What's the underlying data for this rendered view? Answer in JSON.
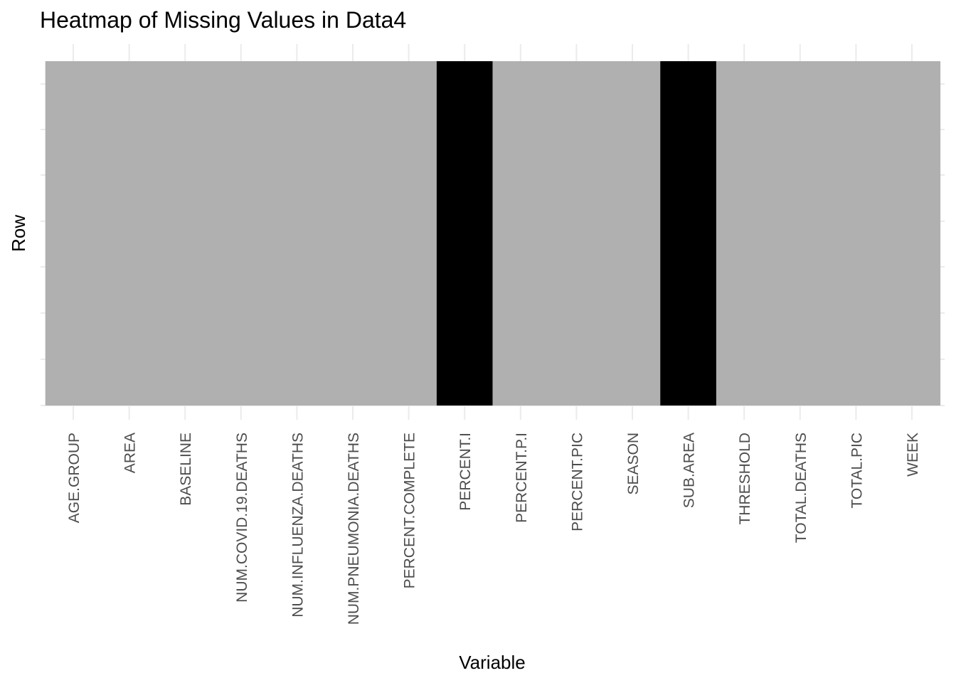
{
  "chart_data": {
    "type": "heatmap",
    "title": "Heatmap of Missing Values in Data4",
    "xlabel": "Variable",
    "ylabel": "Row",
    "categories": [
      "AGE.GROUP",
      "AREA",
      "BASELINE",
      "NUM.COVID.19.DEATHS",
      "NUM.INFLUENZA.DEATHS",
      "NUM.PNEUMONIA.DEATHS",
      "PERCENT.COMPLETE",
      "PERCENT.I",
      "PERCENT.P.I",
      "PERCENT.PIC",
      "SEASON",
      "SUB.AREA",
      "THRESHOLD",
      "TOTAL.DEATHS",
      "TOTAL.PIC",
      "WEEK"
    ],
    "missing": [
      false,
      false,
      false,
      false,
      false,
      false,
      false,
      true,
      false,
      false,
      false,
      true,
      false,
      false,
      false,
      false
    ],
    "colors": {
      "present": "#b0b0b0",
      "missing": "#000000",
      "grid": "#ebebeb",
      "tick_text": "#4d4d4d"
    },
    "grid": true,
    "legend": "none"
  }
}
